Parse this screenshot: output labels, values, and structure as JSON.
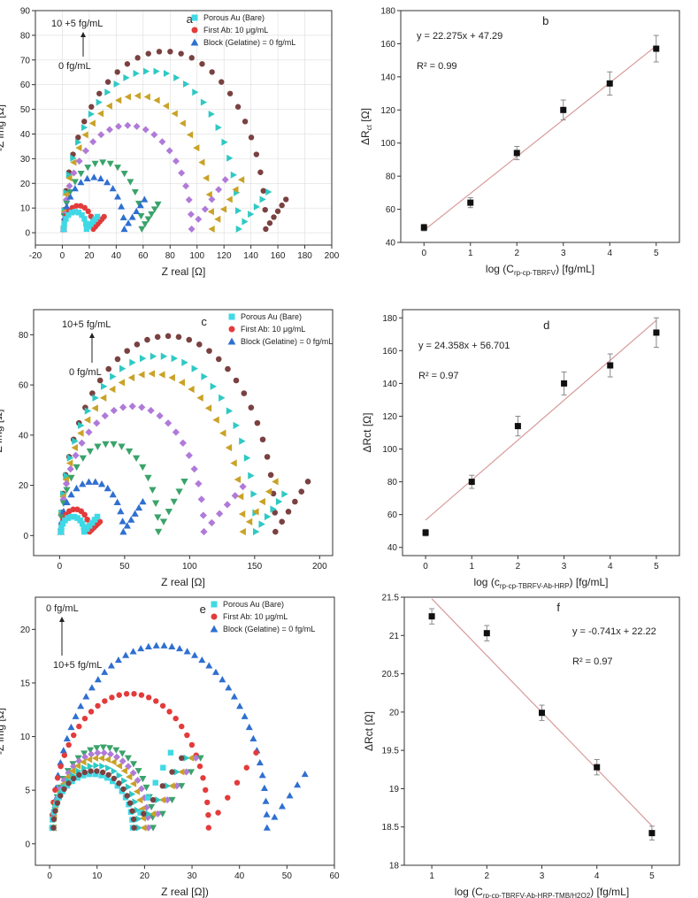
{
  "colors": {
    "cyan": "#3fd9e6",
    "red": "#e33b3b",
    "blue": "#2f6fd1",
    "green": "#3aa36a",
    "purple": "#b07ad9",
    "gold": "#c9a227",
    "teal": "#2fc9c4",
    "brown": "#7a4141",
    "fit": "#d89a9a"
  },
  "chart_data": [
    {
      "id": "a",
      "type": "scatter",
      "label": "a",
      "xlabel": "Z real [Ω]",
      "ylabel": "-Z img [Ω]",
      "xlim": [
        -20,
        200
      ],
      "ylim": [
        -5,
        90
      ],
      "xticks": [
        -20,
        0,
        20,
        40,
        60,
        80,
        100,
        120,
        140,
        160,
        180,
        200
      ],
      "yticks": [
        0,
        10,
        20,
        30,
        40,
        50,
        60,
        70,
        80,
        90
      ],
      "grid": true,
      "legend": "top-left",
      "legend_entries": [
        "Porous Au (Bare)",
        "First Ab: 10 μg/mL",
        "Block (Gelatine) = 0 fg/mL"
      ],
      "annotation_top": "10 +5 fg/mL",
      "annotation_bottom": "0 fg/mL",
      "arrow": "up",
      "series": [
        {
          "name": "Porous Au (Bare)",
          "marker": "square",
          "color": "cyan",
          "R": 17,
          "h": 7,
          "tail_x": 8,
          "tail_y": 5
        },
        {
          "name": "First Ab: 10 μg/mL",
          "marker": "circle",
          "color": "red",
          "R": 22,
          "h": 9.5,
          "tail_x": 8,
          "tail_y": 5
        },
        {
          "name": "Block (Gelatine) = 0 fg/mL",
          "marker": "triangle-up",
          "color": "blue",
          "R": 45,
          "h": 21,
          "tail_x": 15,
          "tail_y": 12
        },
        {
          "marker": "triangle-down",
          "color": "green",
          "R": 58,
          "h": 27,
          "tail_x": 12,
          "tail_y": 10
        },
        {
          "marker": "diamond",
          "color": "purple",
          "R": 95,
          "h": 42,
          "tail_x": 25,
          "tail_y": 20
        },
        {
          "marker": "triangle-left",
          "color": "gold",
          "R": 110,
          "h": 54,
          "tail_x": 22,
          "tail_y": 20
        },
        {
          "marker": "triangle-right",
          "color": "teal",
          "R": 130,
          "h": 64,
          "tail_x": 22,
          "tail_y": 15
        },
        {
          "marker": "circle",
          "color": "brown",
          "R": 150,
          "h": 72,
          "tail_x": 15,
          "tail_y": 12
        }
      ]
    },
    {
      "id": "b",
      "type": "scatter",
      "label": "b",
      "xlabel": "log (C",
      "xlabel_sub": "rp-cp-TBRFV",
      "xlabel_end": ") [fg/mL]",
      "ylabel": "ΔR",
      "ylabel_sub": "ct",
      "ylabel_end": " [Ω]",
      "xlim": [
        -0.5,
        5.5
      ],
      "ylim": [
        40,
        180
      ],
      "xticks": [
        0,
        1,
        2,
        3,
        4,
        5
      ],
      "yticks": [
        40,
        60,
        80,
        100,
        120,
        140,
        160,
        180
      ],
      "x": [
        0,
        1,
        2,
        3,
        4,
        5
      ],
      "y": [
        49,
        64,
        94,
        120,
        136,
        157
      ],
      "err": [
        2,
        3,
        4,
        6,
        7,
        8
      ],
      "fit": {
        "slope": 22.275,
        "intercept": 47.29,
        "x_range": [
          0,
          5
        ]
      },
      "equation": "y = 22.275x + 47.29",
      "r2": "R² = 0.99"
    },
    {
      "id": "c",
      "type": "scatter",
      "label": "c",
      "xlabel": "Z real [Ω]",
      "ylabel": "-Z img [Ω]",
      "xlim": [
        -20,
        210
      ],
      "ylim": [
        -8,
        90
      ],
      "xticks": [
        0,
        50,
        100,
        150,
        200
      ],
      "yticks": [
        0,
        20,
        40,
        60,
        80
      ],
      "grid": false,
      "legend": "top-right",
      "legend_entries": [
        "Porous Au (Bare)",
        "First Ab: 10 μg/mL",
        "Block (Gelatine) = 0 fg/mL"
      ],
      "annotation_top": "10+5 fg/mL",
      "annotation_bottom": "0 fg/mL",
      "arrow": "up",
      "series": [
        {
          "name": "Porous Au (Bare)",
          "marker": "square",
          "color": "cyan",
          "R": 18,
          "h": 6,
          "tail_x": 10,
          "tail_y": 6
        },
        {
          "name": "First Ab: 10 μg/mL",
          "marker": "circle",
          "color": "red",
          "R": 22,
          "h": 9,
          "tail_x": 8,
          "tail_y": 4
        },
        {
          "name": "Block (Gelatine) = 0 fg/mL",
          "marker": "triangle-up",
          "color": "blue",
          "R": 48,
          "h": 20,
          "tail_x": 15,
          "tail_y": 12
        },
        {
          "marker": "triangle-down",
          "color": "green",
          "R": 75,
          "h": 35,
          "tail_x": 20,
          "tail_y": 20
        },
        {
          "marker": "diamond",
          "color": "purple",
          "R": 110,
          "h": 50,
          "tail_x": 30,
          "tail_y": 18
        },
        {
          "marker": "triangle-left",
          "color": "gold",
          "R": 140,
          "h": 63,
          "tail_x": 25,
          "tail_y": 20
        },
        {
          "marker": "triangle-right",
          "color": "teal",
          "R": 150,
          "h": 70,
          "tail_x": 22,
          "tail_y": 15
        },
        {
          "marker": "circle",
          "color": "brown",
          "R": 165,
          "h": 78,
          "tail_x": 25,
          "tail_y": 20
        }
      ]
    },
    {
      "id": "d",
      "type": "scatter",
      "label": "d",
      "xlabel": "log (c",
      "xlabel_sub": "rp-cp-TBRFV-Ab-HRP",
      "xlabel_end": ") [fg/mL]",
      "ylabel": "ΔRct [Ω]",
      "xlim": [
        -0.5,
        5.5
      ],
      "ylim": [
        35,
        185
      ],
      "xticks": [
        0,
        1,
        2,
        3,
        4,
        5
      ],
      "yticks": [
        40,
        60,
        80,
        100,
        120,
        140,
        160,
        180
      ],
      "x": [
        0,
        1,
        2,
        3,
        4,
        5
      ],
      "y": [
        49,
        80,
        114,
        140,
        151,
        171
      ],
      "err": [
        2,
        4,
        6,
        7,
        7,
        9
      ],
      "fit": {
        "slope": 24.358,
        "intercept": 56.701,
        "x_range": [
          0,
          5
        ]
      },
      "equation": "y = 24.358x + 56.701",
      "r2": "R² = 0.97"
    },
    {
      "id": "e",
      "type": "scatter",
      "label": "e",
      "xlabel": "Z real [Ω])",
      "ylabel": "-Z img [Ω]",
      "xlim": [
        -3,
        60
      ],
      "ylim": [
        -2,
        23
      ],
      "xticks": [
        0,
        10,
        20,
        30,
        40,
        50,
        60
      ],
      "yticks": [
        0,
        5,
        10,
        15,
        20
      ],
      "grid": false,
      "legend": "top-right",
      "legend_entries": [
        "Porous Au (Bare)",
        "First Ab: 10 μg/mL",
        "Block (Gelatine) = 0 fg/mL"
      ],
      "annotation_top": "0 fg/mL",
      "annotation_bottom": "10+5 fg/mL",
      "arrow": "up",
      "series": [
        {
          "name": "Porous Au (Bare)",
          "marker": "square",
          "color": "cyan",
          "x0": 0.5,
          "R": 17,
          "h": 5,
          "tail_x": 8,
          "tail_y": 7
        },
        {
          "name": "First Ab: 10 μg/mL",
          "marker": "circle",
          "color": "red",
          "x0": 0.5,
          "R": 33,
          "h": 12.5,
          "tail_x": 10,
          "tail_y": 7
        },
        {
          "name": "Block (Gelatine) = 0 fg/mL",
          "marker": "triangle-up",
          "color": "blue",
          "x0": 0.8,
          "R": 45,
          "h": 17,
          "tail_x": 8,
          "tail_y": 5
        },
        {
          "marker": "circle",
          "color": "brown",
          "x0": 0.8,
          "R": 17,
          "h": 5.3,
          "tail_x": 10,
          "tail_y": 6.5
        },
        {
          "marker": "triangle-right",
          "color": "teal",
          "x0": 0.8,
          "R": 18,
          "h": 5.8,
          "tail_x": 10,
          "tail_y": 6.5
        },
        {
          "marker": "triangle-left",
          "color": "gold",
          "x0": 0.8,
          "R": 19,
          "h": 6.5,
          "tail_x": 10,
          "tail_y": 6.5
        },
        {
          "marker": "diamond",
          "color": "purple",
          "x0": 0.8,
          "R": 20,
          "h": 7,
          "tail_x": 10,
          "tail_y": 6.5
        },
        {
          "marker": "triangle-down",
          "color": "green",
          "x0": 0.8,
          "R": 21,
          "h": 7.5,
          "tail_x": 10,
          "tail_y": 6.5
        }
      ]
    },
    {
      "id": "f",
      "type": "scatter",
      "label": "f",
      "xlabel": "log (C",
      "xlabel_sub": "rp-cp-TBRFV-Ab-HRP-TMB/H2O2",
      "xlabel_end": ") [fg/mL]",
      "ylabel": "ΔRct [Ω]",
      "xlim": [
        0.5,
        5.5
      ],
      "ylim": [
        18.0,
        21.5
      ],
      "xticks": [
        1,
        2,
        3,
        4,
        5
      ],
      "yticks": [
        18.0,
        18.5,
        19.0,
        19.5,
        20.0,
        20.5,
        21.0,
        21.5
      ],
      "x": [
        1,
        2,
        3,
        4,
        5
      ],
      "y": [
        21.25,
        21.03,
        19.99,
        19.28,
        18.42
      ],
      "err": [
        0.1,
        0.1,
        0.1,
        0.1,
        0.09
      ],
      "fit": {
        "slope": -0.741,
        "intercept": 22.22,
        "x_range": [
          1,
          5
        ]
      },
      "equation": "y = -0.741x + 22.22",
      "r2": "R² = 0.97"
    }
  ]
}
